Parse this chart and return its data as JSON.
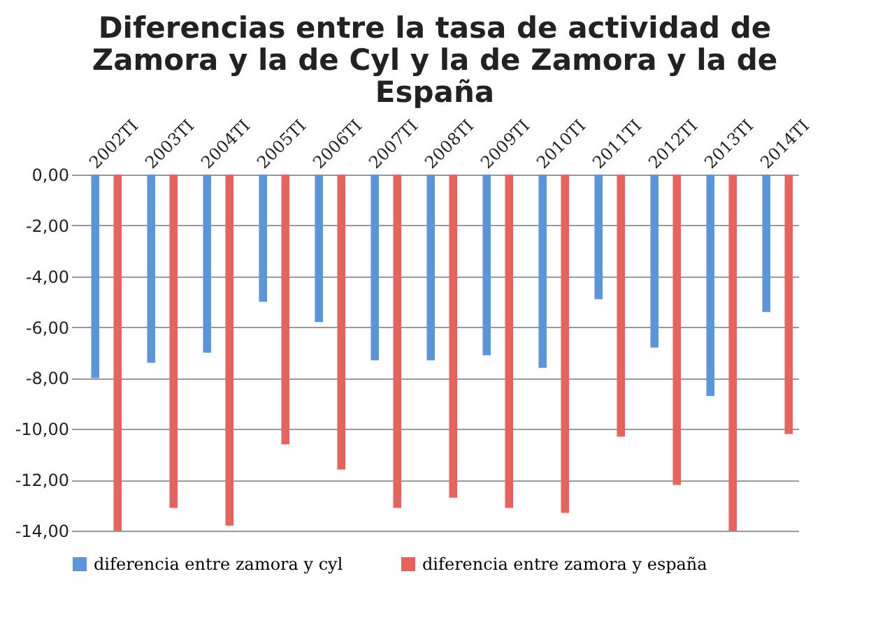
{
  "chart_data": {
    "type": "bar",
    "title": [
      "Diferencias entre la tasa de actividad de",
      "Zamora y la de Cyl y la de Zamora y la de",
      "España"
    ],
    "categories": [
      "2002TI",
      "2003TI",
      "2004TI",
      "2005TI",
      "2006TI",
      "2007TI",
      "2008TI",
      "2009TI",
      "2010TI",
      "2011TI",
      "2012TI",
      "2013TI",
      "2014TI"
    ],
    "series": [
      {
        "name": "diferencia entre zamora y cyl",
        "color": "#5b95dc",
        "values": [
          -8.0,
          -7.4,
          -7.0,
          -5.0,
          -5.8,
          -7.3,
          -7.3,
          -7.1,
          -7.6,
          -4.9,
          -6.8,
          -8.7,
          -5.4
        ]
      },
      {
        "name": "diferencia entre zamora y españa",
        "color": "#e8625e",
        "values": [
          -14.0,
          -13.1,
          -13.8,
          -10.6,
          -11.6,
          -13.1,
          -12.7,
          -13.1,
          -13.3,
          -10.3,
          -12.2,
          -14.0,
          -10.2
        ]
      }
    ],
    "ylim": [
      -14,
      0
    ],
    "yticks": [
      {
        "value": 0,
        "label": "0,00"
      },
      {
        "value": -2,
        "label": "-2,00"
      },
      {
        "value": -4,
        "label": "-4,00"
      },
      {
        "value": -6,
        "label": "-6,00"
      },
      {
        "value": -8,
        "label": "-8,00"
      },
      {
        "value": -10,
        "label": "-10,00"
      },
      {
        "value": -12,
        "label": "-12,00"
      },
      {
        "value": -14,
        "label": "-14,00"
      }
    ],
    "grid": "y",
    "legend": "bottom"
  }
}
